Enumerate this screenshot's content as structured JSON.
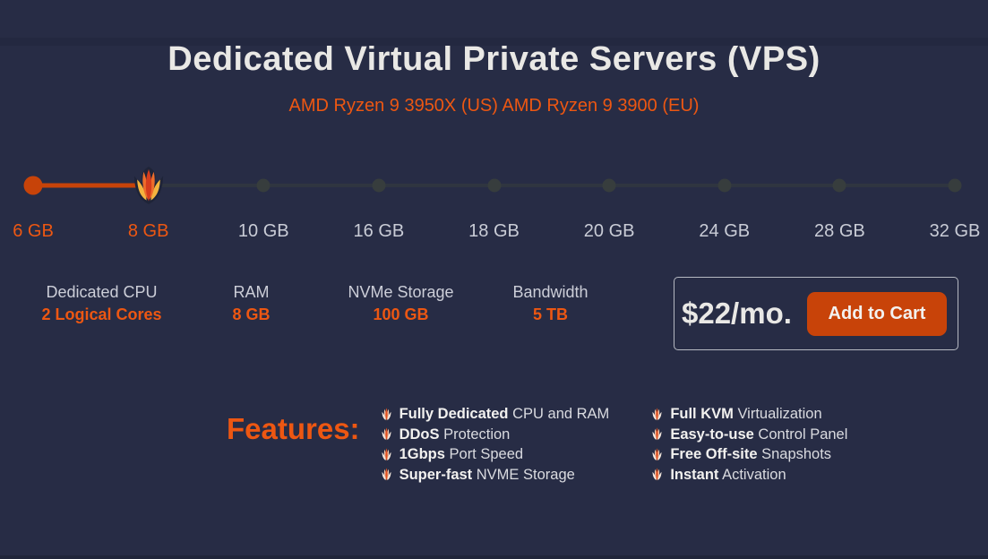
{
  "header": {
    "title": "Dedicated Virtual Private Servers (VPS)",
    "subtitle": "AMD Ryzen 9 3950X (US) AMD Ryzen 9 3900 (EU)"
  },
  "colors": {
    "background": "#272c45",
    "accent_orange": "#ed5712",
    "slider_fill": "#c74309",
    "button_background": "#c84309",
    "track_gray": "#2f3540",
    "label_gray": "#c9ccd6",
    "title_white": "#e9e8e5",
    "price_box_border": "#b6b9c2"
  },
  "slider": {
    "selected": "8 GB",
    "fill_percent": 12.5,
    "handle_icon": "tulip-flame-logo-icon",
    "options": [
      {
        "label": "6 GB",
        "state": "active",
        "marker": "start"
      },
      {
        "label": "8 GB",
        "state": "active",
        "marker": "handle"
      },
      {
        "label": "10 GB",
        "state": "inactive",
        "marker": "stop"
      },
      {
        "label": "16 GB",
        "state": "inactive",
        "marker": "stop"
      },
      {
        "label": "18 GB",
        "state": "inactive",
        "marker": "stop"
      },
      {
        "label": "20 GB",
        "state": "inactive",
        "marker": "stop"
      },
      {
        "label": "24 GB",
        "state": "inactive",
        "marker": "stop"
      },
      {
        "label": "28 GB",
        "state": "inactive",
        "marker": "stop"
      },
      {
        "label": "32 GB",
        "state": "inactive",
        "marker": "stop"
      }
    ]
  },
  "specs": [
    {
      "label": "Dedicated CPU",
      "value": "2 Logical Cores"
    },
    {
      "label": "RAM",
      "value": "8 GB"
    },
    {
      "label": "NVMe Storage",
      "value": "100 GB"
    },
    {
      "label": "Bandwidth",
      "value": "5 TB"
    }
  ],
  "pricing": {
    "price": "$22/mo.",
    "add_to_cart_label": "Add to Cart"
  },
  "features": {
    "heading": "Features:",
    "bullet_icon": "tulip-flame-logo-icon",
    "column1": [
      {
        "bold": "Fully Dedicated",
        "rest": " CPU and RAM"
      },
      {
        "bold": "DDoS",
        "rest": " Protection"
      },
      {
        "bold": "1Gbps",
        "rest": " Port Speed"
      },
      {
        "bold": "Super-fast",
        "rest": " NVME Storage"
      }
    ],
    "column2": [
      {
        "bold": "Full KVM",
        "rest": " Virtualization"
      },
      {
        "bold": "Easy-to-use",
        "rest": " Control Panel"
      },
      {
        "bold": "Free Off-site",
        "rest": " Snapshots"
      },
      {
        "bold": "Instant",
        "rest": " Activation"
      }
    ]
  }
}
